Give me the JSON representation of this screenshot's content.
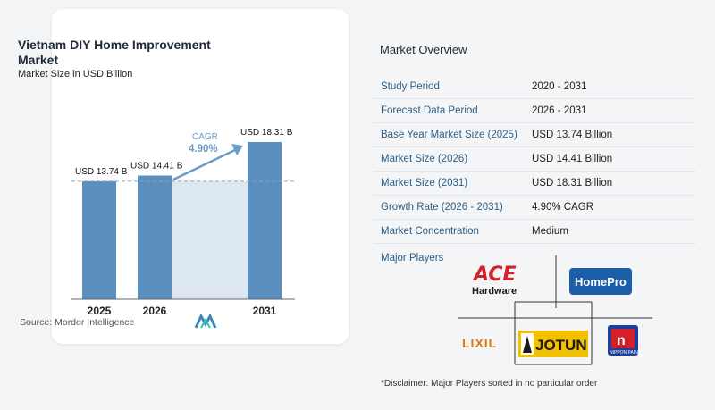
{
  "chart_card": {
    "title": "Vietnam DIY Home Improvement Market",
    "subtitle": "Market Size in USD Billion",
    "source": "Source:  Mordor Intelligence",
    "cagr_label": "CAGR",
    "cagr_value": "4.90%"
  },
  "chart_data": {
    "type": "bar",
    "title": "Vietnam DIY Home Improvement Market",
    "subtitle": "Market Size in USD Billion",
    "categories": [
      "2025",
      "2026",
      "2031"
    ],
    "values": [
      13.74,
      14.41,
      18.31
    ],
    "data_labels": [
      "USD 13.74 B",
      "USD 14.41 B",
      "USD 18.31 B"
    ],
    "ylim": [
      0,
      18.31
    ],
    "grid": false,
    "annotation": "CAGR 4.90%",
    "colors": {
      "bar": "#5b8fbd",
      "band": "#dde7f1",
      "arrow": "#6d9cc8",
      "cagr_text": "#6d9cc8"
    }
  },
  "overview": {
    "title": "Market Overview",
    "rows": [
      {
        "label": "Study Period",
        "value": "2020 - 2031"
      },
      {
        "label": "Forecast Data Period",
        "value": "2026 - 2031"
      },
      {
        "label": "Base Year Market Size (2025)",
        "value": "USD 13.74 Billion"
      },
      {
        "label": "Market Size (2026)",
        "value": "USD 14.41 Billion"
      },
      {
        "label": "Market Size (2031)",
        "value": "USD 18.31 Billion"
      },
      {
        "label": "Growth Rate (2026 - 2031)",
        "value": "4.90% CAGR"
      },
      {
        "label": "Market Concentration",
        "value": "Medium"
      }
    ],
    "players_label": "Major Players",
    "players": [
      "ACE Hardware",
      "HomePro",
      "LIXIL",
      "JOTUN",
      "Nippon Paint"
    ],
    "disclaimer": "*Disclaimer: Major Players sorted in no particular order"
  }
}
